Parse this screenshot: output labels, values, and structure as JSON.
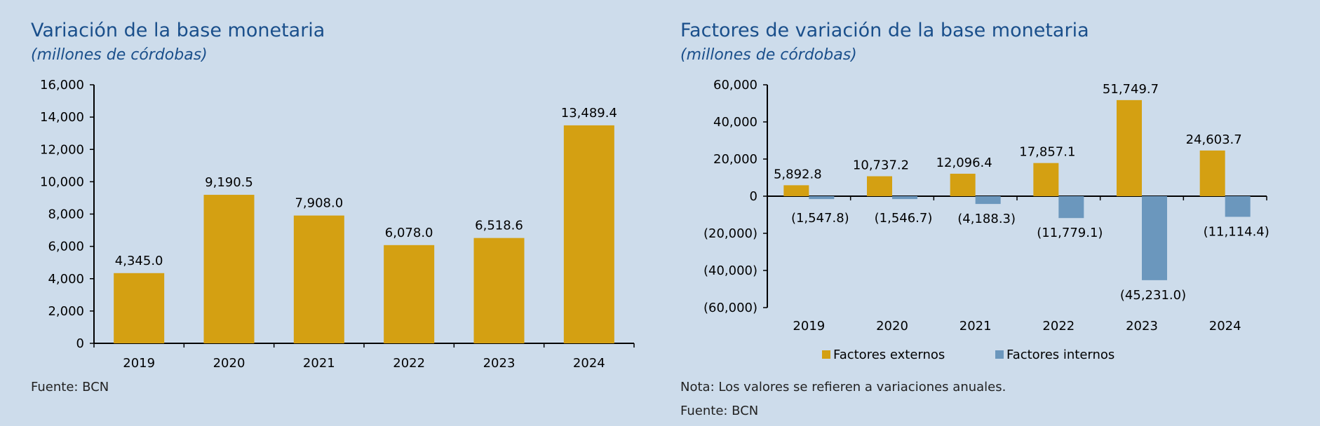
{
  "chart_data": [
    {
      "type": "bar",
      "title": "Variación de la base monetaria",
      "subtitle": "(millones de córdobas)",
      "categories": [
        "2019",
        "2020",
        "2021",
        "2022",
        "2023",
        "2024"
      ],
      "values": [
        4345.0,
        9190.5,
        7908.0,
        6078.0,
        6518.6,
        13489.4
      ],
      "data_labels": [
        "4,345.0",
        "9,190.5",
        "7,908.0",
        "6,078.0",
        "6,518.6",
        "13,489.4"
      ],
      "ylim": [
        0,
        16000
      ],
      "y_ticks": [
        "0",
        "2,000",
        "4,000",
        "6,000",
        "8,000",
        "10,000",
        "12,000",
        "14,000",
        "16,000"
      ],
      "xlabel": "",
      "ylabel": "",
      "grid": false,
      "color": "#d4a012",
      "source": "Fuente: BCN"
    },
    {
      "type": "bar",
      "title": "Factores de variación de la base monetaria",
      "subtitle": "(millones de córdobas)",
      "categories": [
        "2019",
        "2020",
        "2021",
        "2022",
        "2023",
        "2024"
      ],
      "series": [
        {
          "name": "Factores externos",
          "color": "#d4a012",
          "values": [
            5892.8,
            10737.2,
            12096.4,
            17857.1,
            51749.7,
            24603.7
          ],
          "data_labels": [
            "5,892.8",
            "10,737.2",
            "12,096.4",
            "17,857.1",
            "51,749.7",
            "24,603.7"
          ]
        },
        {
          "name": "Factores internos",
          "color": "#6b97bd",
          "values": [
            -1547.8,
            -1546.7,
            -4188.3,
            -11779.1,
            -45231.0,
            -11114.4
          ],
          "data_labels": [
            "(1,547.8)",
            "(1,546.7)",
            "(4,188.3)",
            "(11,779.1)",
            "(45,231.0)",
            "(11,114.4)"
          ]
        }
      ],
      "ylim": [
        -60000,
        60000
      ],
      "y_ticks": [
        "(60,000)",
        "(40,000)",
        "(20,000)",
        "0",
        "20,000",
        "40,000",
        "60,000"
      ],
      "xlabel": "",
      "ylabel": "",
      "grid": false,
      "legend": "bottom",
      "note": "Nota: Los valores se refieren a variaciones anuales.",
      "source": "Fuente: BCN"
    }
  ]
}
